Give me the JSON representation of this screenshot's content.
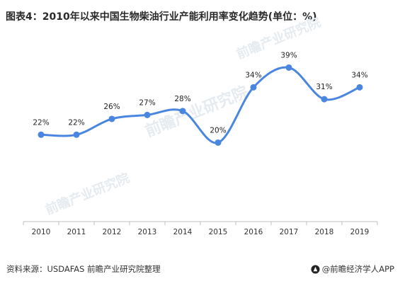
{
  "header": {
    "title": "图表4：2010年以来中国生物柴油行业产能利用率变化趋势(单位：%)"
  },
  "chart_data": {
    "type": "line",
    "title": "图表4：2010年以来中国生物柴油行业产能利用率变化趋势(单位：%)",
    "xlabel": "",
    "ylabel": "",
    "categories": [
      "2010",
      "2011",
      "2012",
      "2013",
      "2014",
      "2015",
      "2016",
      "2017",
      "2018",
      "2019"
    ],
    "series": [
      {
        "values": [
          22,
          22,
          26,
          27,
          28,
          20,
          34,
          39,
          31,
          34
        ],
        "labels": [
          "22%",
          "22%",
          "26%",
          "27%",
          "28%",
          "20%",
          "34%",
          "39%",
          "31%",
          "34%"
        ],
        "color": "#4a86e0"
      }
    ],
    "ylim": [
      0,
      45
    ],
    "grid": false,
    "smooth": true,
    "line_color": "#4a86e0",
    "axis_color": "#bfbfbf"
  },
  "footer": {
    "source": "资料来源：USDAFAS 前瞻产业研究院整理",
    "brand": "@前瞻经济学人APP",
    "brand_icon": "qianzhan-logo-icon"
  },
  "watermark": {
    "text": "前瞻产业研究院"
  }
}
